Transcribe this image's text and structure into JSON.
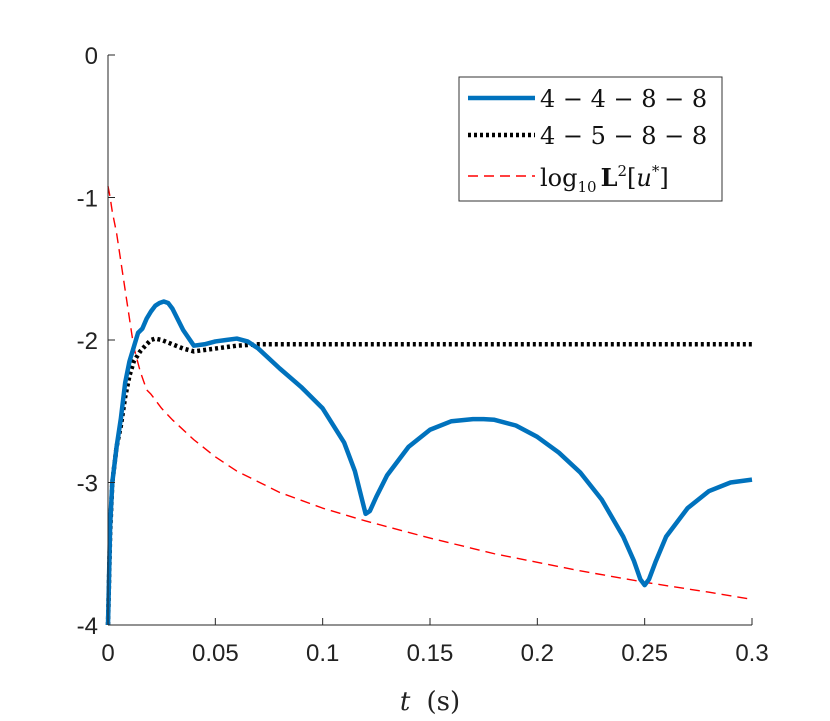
{
  "chart_data": {
    "type": "line",
    "xlabel": "t (s)",
    "xlabel_parts": {
      "var": "t",
      "unit": "(s)"
    },
    "ylabel": "",
    "xlim": [
      0,
      0.3
    ],
    "ylim": [
      -4,
      0
    ],
    "x_ticks": [
      0,
      0.05,
      0.1,
      0.15,
      0.2,
      0.25,
      0.3
    ],
    "x_tick_labels": [
      "0",
      "0.05",
      "0.1",
      "0.15",
      "0.2",
      "0.25",
      "0.3"
    ],
    "y_ticks": [
      0,
      -1,
      -2,
      -3,
      -4
    ],
    "y_tick_labels": [
      "0",
      "-1",
      "-2",
      "-3",
      "-4"
    ],
    "grid": false,
    "legend_position": "top-right",
    "series": [
      {
        "name": "4 − 4 − 8 − 8",
        "color": "#0072BD",
        "style": "solid",
        "x": [
          0,
          0.001,
          0.002,
          0.004,
          0.006,
          0.008,
          0.01,
          0.012,
          0.014,
          0.016,
          0.018,
          0.02,
          0.022,
          0.024,
          0.026,
          0.028,
          0.03,
          0.035,
          0.04,
          0.045,
          0.05,
          0.055,
          0.06,
          0.065,
          0.07,
          0.08,
          0.09,
          0.1,
          0.11,
          0.115,
          0.118,
          0.12,
          0.122,
          0.125,
          0.13,
          0.14,
          0.15,
          0.16,
          0.17,
          0.175,
          0.18,
          0.19,
          0.2,
          0.21,
          0.22,
          0.23,
          0.24,
          0.245,
          0.248,
          0.25,
          0.252,
          0.255,
          0.26,
          0.27,
          0.28,
          0.29,
          0.3
        ],
        "y": [
          -4.0,
          -3.3,
          -3.0,
          -2.75,
          -2.55,
          -2.3,
          -2.15,
          -2.05,
          -1.95,
          -1.92,
          -1.85,
          -1.8,
          -1.76,
          -1.74,
          -1.73,
          -1.74,
          -1.78,
          -1.93,
          -2.04,
          -2.03,
          -2.01,
          -2.0,
          -1.99,
          -2.01,
          -2.06,
          -2.2,
          -2.33,
          -2.48,
          -2.72,
          -2.92,
          -3.1,
          -3.22,
          -3.2,
          -3.1,
          -2.95,
          -2.75,
          -2.63,
          -2.57,
          -2.555,
          -2.555,
          -2.56,
          -2.6,
          -2.68,
          -2.79,
          -2.93,
          -3.12,
          -3.38,
          -3.55,
          -3.68,
          -3.72,
          -3.68,
          -3.56,
          -3.38,
          -3.18,
          -3.06,
          -3.0,
          -2.98
        ]
      },
      {
        "name": "4 − 5 − 8 − 8",
        "color": "#000000",
        "style": "dotted",
        "x": [
          0,
          0.001,
          0.002,
          0.004,
          0.006,
          0.008,
          0.01,
          0.012,
          0.015,
          0.018,
          0.02,
          0.022,
          0.025,
          0.03,
          0.035,
          0.04,
          0.045,
          0.05,
          0.055,
          0.06,
          0.07,
          0.08,
          0.1,
          0.15,
          0.2,
          0.25,
          0.3
        ],
        "y": [
          -4.0,
          -3.35,
          -3.0,
          -2.75,
          -2.6,
          -2.4,
          -2.25,
          -2.15,
          -2.08,
          -2.03,
          -2.0,
          -1.99,
          -2.0,
          -2.03,
          -2.06,
          -2.08,
          -2.07,
          -2.06,
          -2.05,
          -2.04,
          -2.03,
          -2.03,
          -2.03,
          -2.03,
          -2.03,
          -2.03,
          -2.03
        ]
      },
      {
        "name": "log10 L2[u*]",
        "color": "#FF0000",
        "style": "dashed",
        "x": [
          0,
          0.001,
          0.002,
          0.004,
          0.006,
          0.008,
          0.01,
          0.012,
          0.015,
          0.018,
          0.02,
          0.025,
          0.03,
          0.04,
          0.05,
          0.06,
          0.08,
          0.1,
          0.12,
          0.15,
          0.18,
          0.2,
          0.22,
          0.25,
          0.28,
          0.3
        ],
        "y": [
          -0.92,
          -1.0,
          -1.1,
          -1.25,
          -1.45,
          -1.65,
          -1.85,
          -2.05,
          -2.22,
          -2.35,
          -2.38,
          -2.48,
          -2.56,
          -2.7,
          -2.82,
          -2.92,
          -3.07,
          -3.18,
          -3.27,
          -3.39,
          -3.5,
          -3.56,
          -3.62,
          -3.7,
          -3.77,
          -3.82
        ]
      }
    ]
  }
}
